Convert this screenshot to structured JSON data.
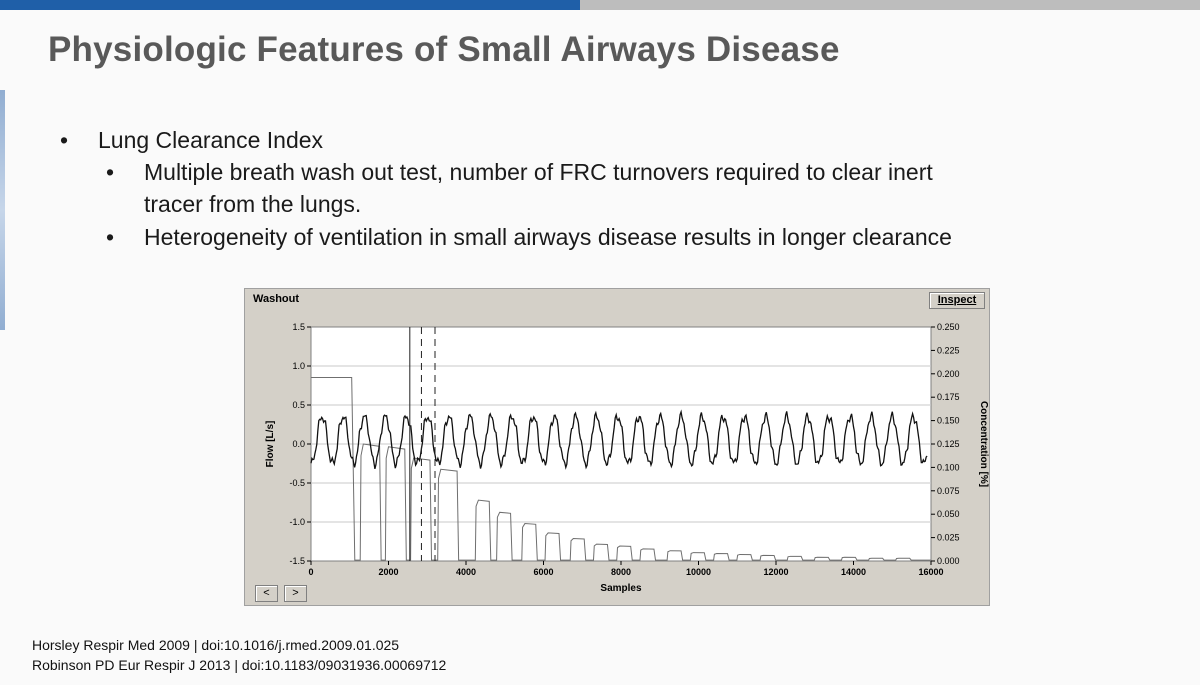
{
  "slide": {
    "title": "Physiologic Features of Small Airways Disease",
    "bullets": {
      "l1": "Lung Clearance Index",
      "l2a_line1": "Multiple breath wash out test, number of FRC turnovers required to clear inert",
      "l2a_line2": "tracer from the lungs.",
      "l2b": "Heterogeneity of ventilation in small airways disease results in longer clearance",
      "bullet_char": "•"
    },
    "references": [
      "Horsley Respir Med 2009 | doi:10.1016/j.rmed.2009.01.025",
      "Robinson PD Eur Respir J 2013 | doi:10.1183/09031936.00069712"
    ]
  },
  "figure": {
    "panel_title": "Washout",
    "inspect_label": "Inspect",
    "prev_label": "<",
    "next_label": ">"
  },
  "chart_data": {
    "type": "line",
    "title": "Washout",
    "xlabel": "Samples",
    "ylabel_left": "Flow [L/s]",
    "ylabel_right": "Concentration [%]",
    "xlim": [
      0,
      16000
    ],
    "ylim_left": [
      -1.5,
      1.5
    ],
    "ylim_right": [
      0.0,
      0.25
    ],
    "x_ticks": [
      "0",
      "2000",
      "4000",
      "6000",
      "8000",
      "10000",
      "12000",
      "14000",
      "16000"
    ],
    "y_left_ticks": [
      "1.5",
      "1.0",
      "0.5",
      "0.0",
      "-0.5",
      "-1.0",
      "-1.5"
    ],
    "y_right_ticks": [
      "0.250",
      "0.225",
      "0.200",
      "0.175",
      "0.150",
      "0.125",
      "0.100",
      "0.075",
      "0.050",
      "0.025",
      "0.000"
    ],
    "grid": true,
    "cursor_lines_x": [
      2550,
      2850,
      3200
    ],
    "series": [
      {
        "axis": "left",
        "start_x": 0,
        "end_x": 15900,
        "breath_count": 29,
        "first_breath_x": 150,
        "breath_period": 545,
        "min": -0.25,
        "max": 0.35
      },
      {
        "axis": "right",
        "baseline_segment": {
          "x": [
            0,
            1050
          ],
          "value": 0.196
        },
        "peaks_x": [
          1550,
          2200,
          2850,
          3550,
          4450,
          5000,
          5650,
          6250,
          6900,
          7500,
          8100,
          8700,
          9400,
          10000,
          10600,
          11200,
          11800,
          12500,
          13200,
          13900,
          14600,
          15300
        ],
        "peaks_value": [
          0.125,
          0.122,
          0.11,
          0.098,
          0.065,
          0.052,
          0.04,
          0.03,
          0.024,
          0.018,
          0.016,
          0.013,
          0.011,
          0.009,
          0.008,
          0.007,
          0.006,
          0.005,
          0.004,
          0.004,
          0.003,
          0.003
        ],
        "floor": 0.001
      }
    ]
  }
}
